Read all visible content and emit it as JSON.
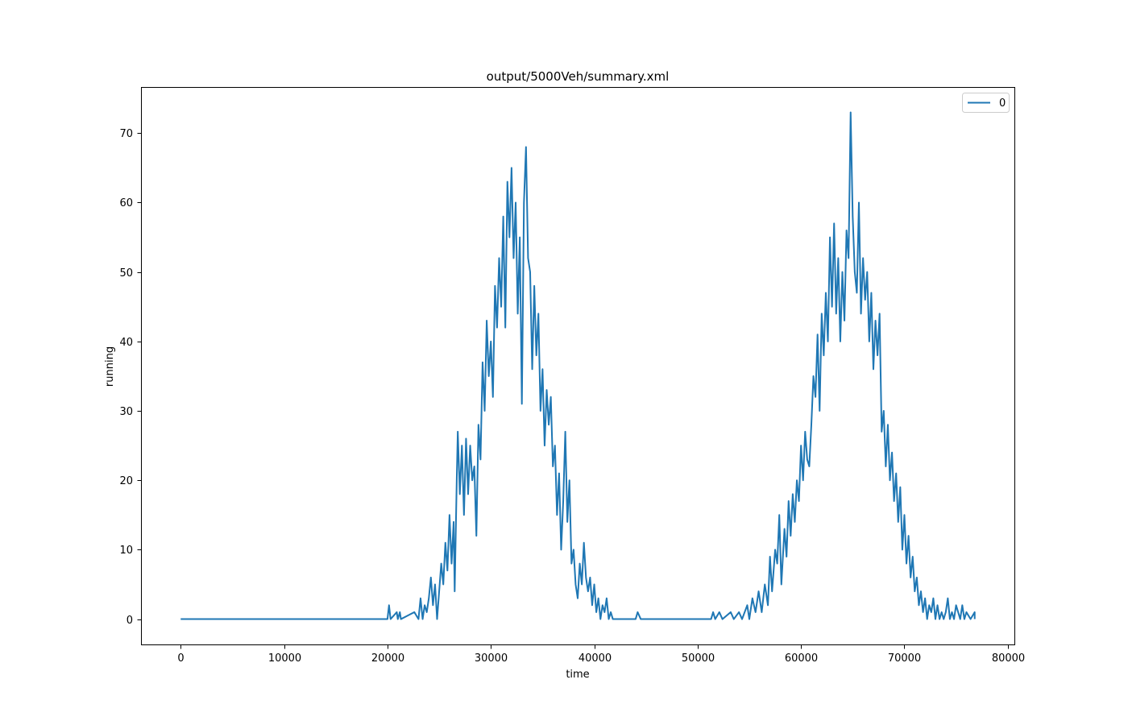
{
  "chart_data": {
    "type": "line",
    "title": "output/5000Veh/summary.xml",
    "xlabel": "time",
    "ylabel": "running",
    "xlim": [
      -3840,
      80640
    ],
    "ylim": [
      -3.65,
      76.65
    ],
    "xticks": [
      0,
      10000,
      20000,
      30000,
      40000,
      50000,
      60000,
      70000,
      80000
    ],
    "yticks": [
      0,
      10,
      20,
      30,
      40,
      50,
      60,
      70
    ],
    "legend": {
      "placement": "top-right",
      "entries": [
        "0"
      ]
    },
    "grid": false,
    "colors": {
      "line": "#1f77b4",
      "axes": "#000000",
      "background": "#ffffff"
    },
    "series": [
      {
        "name": "0",
        "points": [
          [
            0,
            0
          ],
          [
            20000,
            0
          ],
          [
            20150,
            2
          ],
          [
            20300,
            0
          ],
          [
            20900,
            1
          ],
          [
            21000,
            0
          ],
          [
            21200,
            1
          ],
          [
            21300,
            0
          ],
          [
            22600,
            1
          ],
          [
            23000,
            0
          ],
          [
            23200,
            3
          ],
          [
            23400,
            0
          ],
          [
            23600,
            2
          ],
          [
            23800,
            1
          ],
          [
            24000,
            3
          ],
          [
            24200,
            6
          ],
          [
            24400,
            2
          ],
          [
            24600,
            5
          ],
          [
            24800,
            0
          ],
          [
            25000,
            4
          ],
          [
            25200,
            8
          ],
          [
            25400,
            5
          ],
          [
            25600,
            11
          ],
          [
            25800,
            7
          ],
          [
            26000,
            15
          ],
          [
            26200,
            8
          ],
          [
            26400,
            14
          ],
          [
            26500,
            4
          ],
          [
            26700,
            20
          ],
          [
            26800,
            27
          ],
          [
            27000,
            18
          ],
          [
            27200,
            25
          ],
          [
            27400,
            15
          ],
          [
            27600,
            26
          ],
          [
            27800,
            18
          ],
          [
            28000,
            25
          ],
          [
            28200,
            20
          ],
          [
            28400,
            22
          ],
          [
            28600,
            12
          ],
          [
            28800,
            28
          ],
          [
            29000,
            23
          ],
          [
            29200,
            37
          ],
          [
            29400,
            30
          ],
          [
            29600,
            43
          ],
          [
            29800,
            35
          ],
          [
            30000,
            40
          ],
          [
            30200,
            32
          ],
          [
            30400,
            48
          ],
          [
            30600,
            42
          ],
          [
            30800,
            52
          ],
          [
            31000,
            45
          ],
          [
            31200,
            58
          ],
          [
            31400,
            42
          ],
          [
            31600,
            63
          ],
          [
            31800,
            55
          ],
          [
            32000,
            65
          ],
          [
            32200,
            52
          ],
          [
            32400,
            60
          ],
          [
            32600,
            44
          ],
          [
            32800,
            55
          ],
          [
            33000,
            31
          ],
          [
            33200,
            60
          ],
          [
            33400,
            68
          ],
          [
            33600,
            52
          ],
          [
            33800,
            50
          ],
          [
            34000,
            36
          ],
          [
            34200,
            48
          ],
          [
            34400,
            38
          ],
          [
            34600,
            44
          ],
          [
            34800,
            30
          ],
          [
            35000,
            36
          ],
          [
            35200,
            25
          ],
          [
            35400,
            33
          ],
          [
            35600,
            28
          ],
          [
            35800,
            32
          ],
          [
            36000,
            22
          ],
          [
            36200,
            25
          ],
          [
            36400,
            15
          ],
          [
            36600,
            21
          ],
          [
            36800,
            10
          ],
          [
            37000,
            17
          ],
          [
            37200,
            27
          ],
          [
            37400,
            14
          ],
          [
            37600,
            20
          ],
          [
            37800,
            8
          ],
          [
            38000,
            10
          ],
          [
            38200,
            5
          ],
          [
            38400,
            3
          ],
          [
            38600,
            8
          ],
          [
            38800,
            5
          ],
          [
            39000,
            11
          ],
          [
            39200,
            6
          ],
          [
            39400,
            4
          ],
          [
            39600,
            6
          ],
          [
            39800,
            2
          ],
          [
            40000,
            5
          ],
          [
            40200,
            1
          ],
          [
            40400,
            3
          ],
          [
            40600,
            0
          ],
          [
            40800,
            2
          ],
          [
            41000,
            1
          ],
          [
            41200,
            3
          ],
          [
            41400,
            0
          ],
          [
            41600,
            1
          ],
          [
            41800,
            0
          ],
          [
            44000,
            0
          ],
          [
            44200,
            1
          ],
          [
            44500,
            0
          ],
          [
            51300,
            0
          ],
          [
            51500,
            1
          ],
          [
            51700,
            0
          ],
          [
            52100,
            1
          ],
          [
            52400,
            0
          ],
          [
            53200,
            1
          ],
          [
            53500,
            0
          ],
          [
            54000,
            1
          ],
          [
            54300,
            0
          ],
          [
            54800,
            2
          ],
          [
            55000,
            0
          ],
          [
            55300,
            3
          ],
          [
            55600,
            1
          ],
          [
            55900,
            4
          ],
          [
            56200,
            1
          ],
          [
            56500,
            5
          ],
          [
            56800,
            2
          ],
          [
            57000,
            9
          ],
          [
            57200,
            4
          ],
          [
            57500,
            10
          ],
          [
            57700,
            8
          ],
          [
            57900,
            15
          ],
          [
            58100,
            5
          ],
          [
            58400,
            13
          ],
          [
            58600,
            9
          ],
          [
            58800,
            17
          ],
          [
            59000,
            12
          ],
          [
            59200,
            18
          ],
          [
            59400,
            14
          ],
          [
            59600,
            20
          ],
          [
            59800,
            17
          ],
          [
            60000,
            25
          ],
          [
            60200,
            20
          ],
          [
            60400,
            27
          ],
          [
            60600,
            23
          ],
          [
            60800,
            22
          ],
          [
            61000,
            28
          ],
          [
            61200,
            35
          ],
          [
            61400,
            32
          ],
          [
            61600,
            41
          ],
          [
            61800,
            30
          ],
          [
            62000,
            44
          ],
          [
            62200,
            38
          ],
          [
            62400,
            47
          ],
          [
            62600,
            40
          ],
          [
            62800,
            55
          ],
          [
            63000,
            45
          ],
          [
            63200,
            57
          ],
          [
            63400,
            44
          ],
          [
            63600,
            52
          ],
          [
            63800,
            40
          ],
          [
            64000,
            50
          ],
          [
            64200,
            43
          ],
          [
            64400,
            56
          ],
          [
            64600,
            52
          ],
          [
            64800,
            73
          ],
          [
            65000,
            58
          ],
          [
            65200,
            50
          ],
          [
            65400,
            47
          ],
          [
            65600,
            60
          ],
          [
            65800,
            44
          ],
          [
            66000,
            52
          ],
          [
            66200,
            46
          ],
          [
            66400,
            50
          ],
          [
            66600,
            40
          ],
          [
            66800,
            47
          ],
          [
            67000,
            36
          ],
          [
            67200,
            43
          ],
          [
            67400,
            38
          ],
          [
            67600,
            44
          ],
          [
            67800,
            27
          ],
          [
            68000,
            30
          ],
          [
            68200,
            22
          ],
          [
            68400,
            28
          ],
          [
            68600,
            20
          ],
          [
            68800,
            24
          ],
          [
            69000,
            17
          ],
          [
            69200,
            21
          ],
          [
            69400,
            14
          ],
          [
            69600,
            19
          ],
          [
            69800,
            10
          ],
          [
            70000,
            15
          ],
          [
            70200,
            8
          ],
          [
            70400,
            12
          ],
          [
            70600,
            6
          ],
          [
            70800,
            9
          ],
          [
            71000,
            4
          ],
          [
            71200,
            6
          ],
          [
            71400,
            2
          ],
          [
            71600,
            4
          ],
          [
            71800,
            1
          ],
          [
            72000,
            3
          ],
          [
            72200,
            0
          ],
          [
            72400,
            2
          ],
          [
            72600,
            1
          ],
          [
            72800,
            3
          ],
          [
            73000,
            0
          ],
          [
            73200,
            2
          ],
          [
            73400,
            0
          ],
          [
            73600,
            1
          ],
          [
            73800,
            0
          ],
          [
            74000,
            1
          ],
          [
            74200,
            3
          ],
          [
            74400,
            0
          ],
          [
            74600,
            1
          ],
          [
            74800,
            0
          ],
          [
            75000,
            2
          ],
          [
            75200,
            1
          ],
          [
            75400,
            0
          ],
          [
            75600,
            2
          ],
          [
            75800,
            0
          ],
          [
            76000,
            1
          ],
          [
            76400,
            0
          ],
          [
            76800,
            1
          ],
          [
            76800,
            0
          ]
        ]
      }
    ]
  }
}
